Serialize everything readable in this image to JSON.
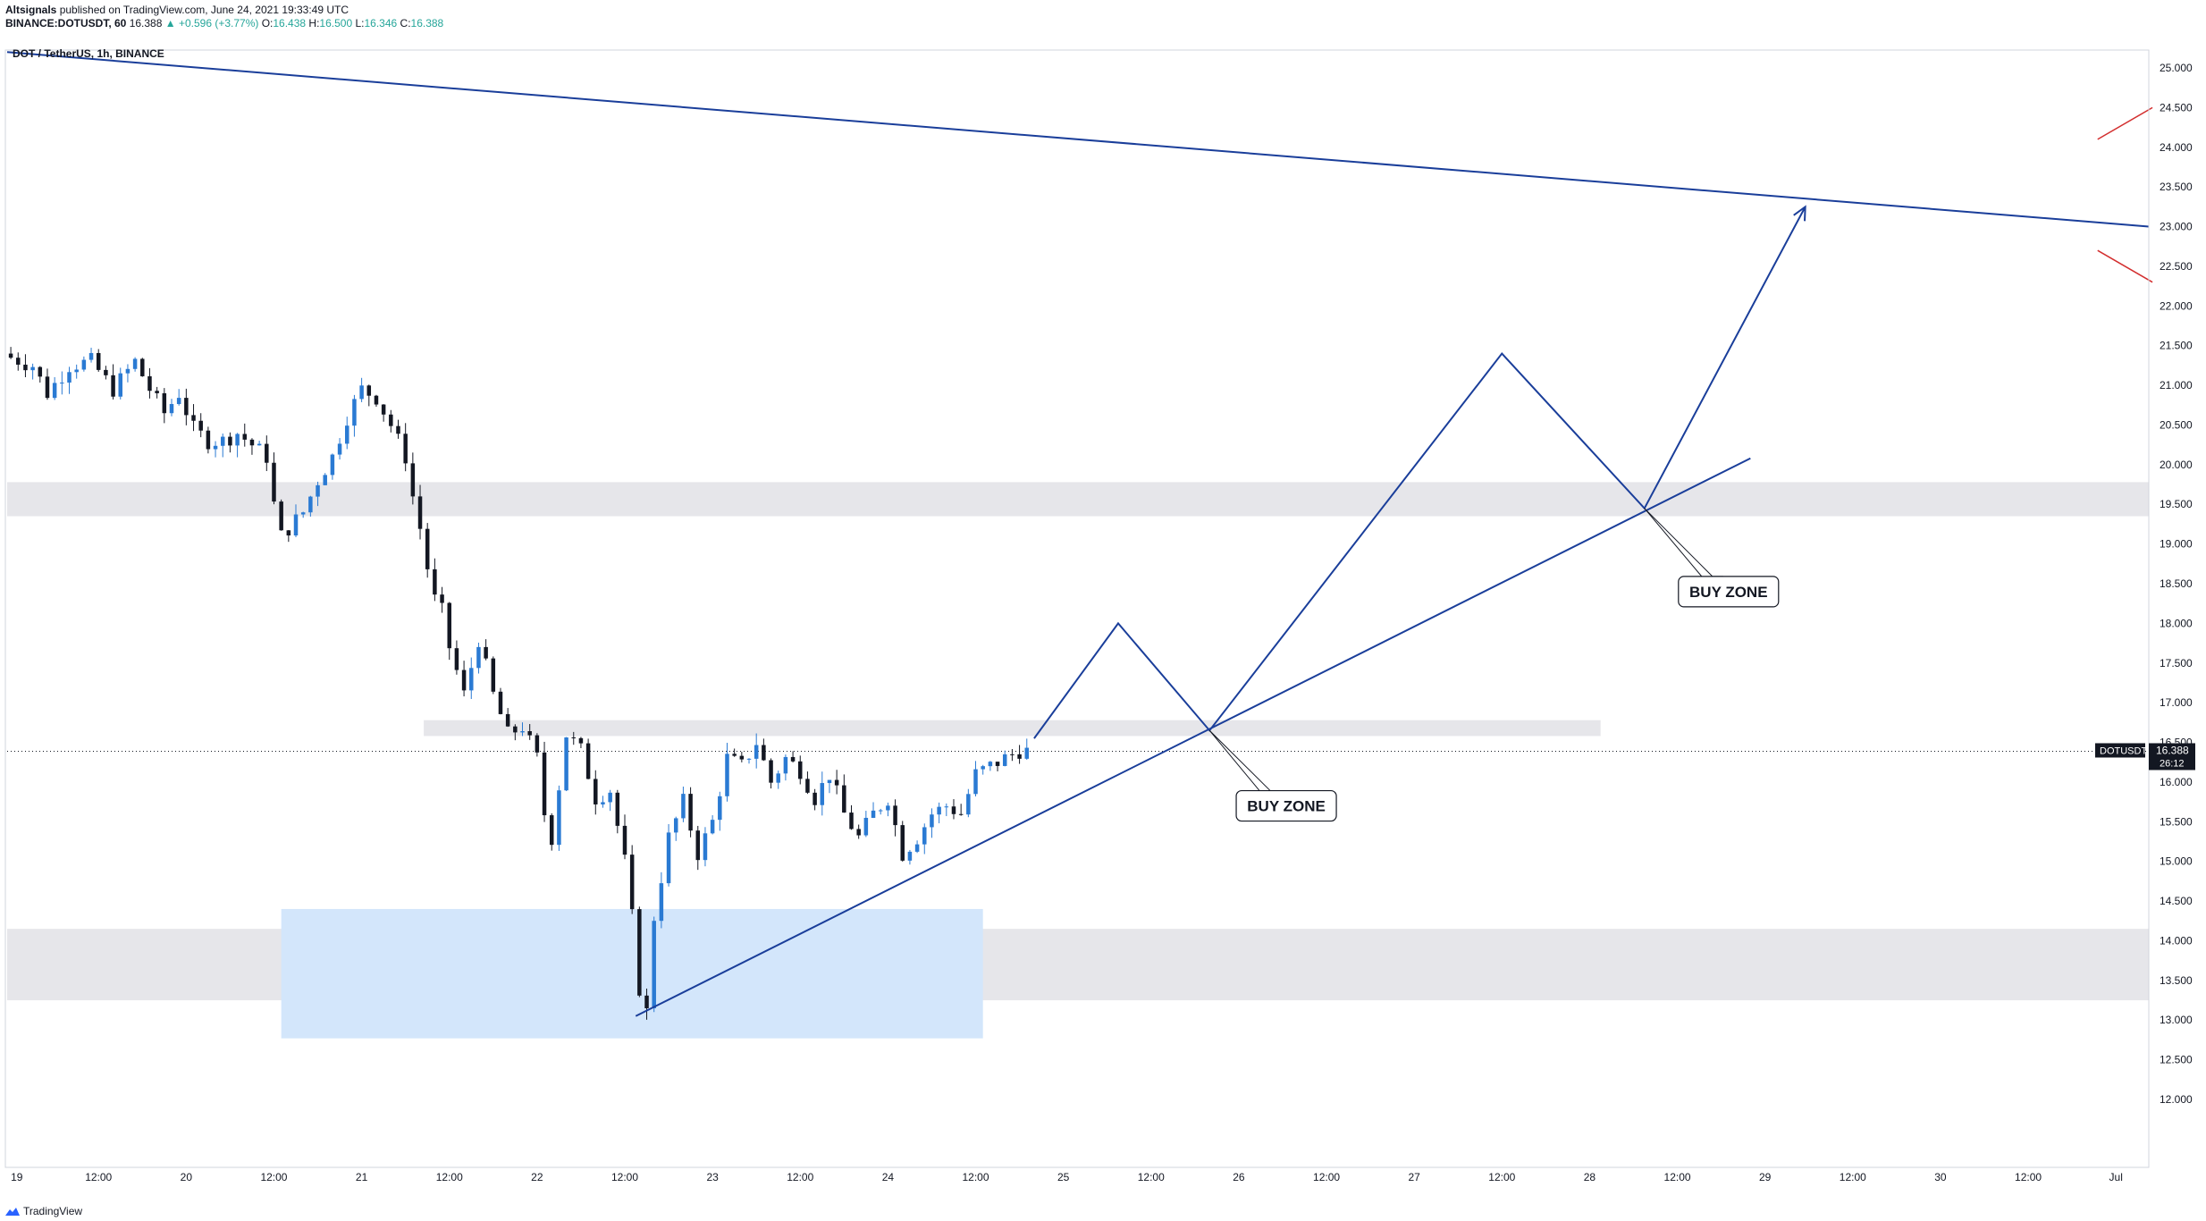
{
  "header": {
    "publisher": "Altsignals",
    "published_text": "published on TradingView.com, June 24, 2021 19:33:49 UTC",
    "symbol": "BINANCE:DOTUSDT, 60",
    "last": "16.388",
    "change": "▲ +0.596 (+3.77%)",
    "o_label": "O:",
    "o": "16.438",
    "h_label": "H:",
    "h": "16.500",
    "l_label": "L:",
    "l": "16.346",
    "c_label": "C:",
    "c": "16.388"
  },
  "footer": {
    "brand": "TradingView"
  },
  "colors": {
    "up": "#2a7ad3",
    "down": "#131722",
    "drawing": "#1a3e9a",
    "red_mark": "#d32f2f",
    "zone_gray": "#e6e6ea",
    "zone_blue": "#d3e6fb"
  },
  "chart_data": {
    "type": "candlestick",
    "title": "DOT / TetherUS, 1h, BINANCE",
    "ylim": [
      12.0,
      25.0
    ],
    "y_ticks": [
      "12.000",
      "12.500",
      "13.000",
      "13.500",
      "14.000",
      "14.500",
      "15.000",
      "15.500",
      "16.000",
      "16.500",
      "17.000",
      "17.500",
      "18.000",
      "18.500",
      "19.000",
      "19.500",
      "20.000",
      "20.500",
      "21.000",
      "21.500",
      "22.000",
      "22.500",
      "23.000",
      "23.500",
      "24.000",
      "24.500",
      "25.000"
    ],
    "x_ticks": [
      {
        "t": 0,
        "label": "19"
      },
      {
        "t": 12,
        "label": "12:00"
      },
      {
        "t": 24,
        "label": "20"
      },
      {
        "t": 36,
        "label": "12:00"
      },
      {
        "t": 48,
        "label": "21"
      },
      {
        "t": 60,
        "label": "12:00"
      },
      {
        "t": 72,
        "label": "22"
      },
      {
        "t": 84,
        "label": "12:00"
      },
      {
        "t": 96,
        "label": "23"
      },
      {
        "t": 108,
        "label": "12:00"
      },
      {
        "t": 120,
        "label": "24"
      },
      {
        "t": 132,
        "label": "12:00"
      },
      {
        "t": 144,
        "label": "25"
      },
      {
        "t": 156,
        "label": "12:00"
      },
      {
        "t": 168,
        "label": "26"
      },
      {
        "t": 180,
        "label": "12:00"
      },
      {
        "t": 192,
        "label": "27"
      },
      {
        "t": 204,
        "label": "12:00"
      },
      {
        "t": 216,
        "label": "28"
      },
      {
        "t": 228,
        "label": "12:00"
      },
      {
        "t": 240,
        "label": "29"
      },
      {
        "t": 252,
        "label": "12:00"
      },
      {
        "t": 264,
        "label": "30"
      },
      {
        "t": 276,
        "label": "12:00"
      },
      {
        "t": 288,
        "label": "Jul"
      }
    ],
    "x_range": [
      -0.5,
      292.5
    ],
    "last_price": {
      "value": 16.388,
      "symbol": "DOTUSDT",
      "price_label": "16.388",
      "countdown": "26:12"
    },
    "ohlc_anchors": [
      [
        0,
        21.35
      ],
      [
        3,
        21.25
      ],
      [
        5,
        20.9
      ],
      [
        8,
        21.25
      ],
      [
        11,
        21.3
      ],
      [
        14,
        20.95
      ],
      [
        17,
        21.3
      ],
      [
        19,
        20.95
      ],
      [
        21,
        20.65
      ],
      [
        23,
        20.9
      ],
      [
        25,
        20.45
      ],
      [
        27,
        20.3
      ],
      [
        29,
        20.3
      ],
      [
        31,
        20.4
      ],
      [
        33,
        20.25
      ],
      [
        35,
        20.1
      ],
      [
        36,
        19.5
      ],
      [
        37,
        19.1
      ],
      [
        40,
        19.4
      ],
      [
        42,
        19.8
      ],
      [
        44,
        20.1
      ],
      [
        46,
        20.6
      ],
      [
        48,
        20.95
      ],
      [
        50,
        20.85
      ],
      [
        52,
        20.5
      ],
      [
        54,
        20.1
      ],
      [
        55,
        19.6
      ],
      [
        56,
        19.2
      ],
      [
        57,
        18.7
      ],
      [
        58,
        18.3
      ],
      [
        59,
        18.15
      ],
      [
        60,
        17.7
      ],
      [
        62,
        17.1
      ],
      [
        64,
        17.8
      ],
      [
        66,
        17.1
      ],
      [
        68,
        16.6
      ],
      [
        70,
        16.7
      ],
      [
        72,
        16.3
      ],
      [
        73,
        15.6
      ],
      [
        74,
        15.3
      ],
      [
        76,
        16.6
      ],
      [
        78,
        16.4
      ],
      [
        80,
        15.8
      ],
      [
        82,
        15.9
      ],
      [
        84,
        15.0
      ],
      [
        85,
        14.3
      ],
      [
        86,
        13.4
      ],
      [
        87,
        13.1
      ],
      [
        88,
        14.3
      ],
      [
        90,
        15.3
      ],
      [
        92,
        15.75
      ],
      [
        94,
        15.1
      ],
      [
        96,
        15.5
      ],
      [
        98,
        16.3
      ],
      [
        100,
        16.2
      ],
      [
        102,
        16.5
      ],
      [
        104,
        16.0
      ],
      [
        106,
        16.3
      ],
      [
        108,
        16.15
      ],
      [
        110,
        15.8
      ],
      [
        112,
        16.1
      ],
      [
        114,
        15.6
      ],
      [
        116,
        15.3
      ],
      [
        118,
        15.6
      ],
      [
        120,
        15.8
      ],
      [
        122,
        15.1
      ],
      [
        124,
        15.3
      ],
      [
        126,
        15.6
      ],
      [
        128,
        15.7
      ],
      [
        130,
        15.6
      ],
      [
        132,
        16.1
      ],
      [
        134,
        16.2
      ],
      [
        136,
        16.3
      ],
      [
        138,
        16.4
      ],
      [
        139,
        16.388
      ]
    ],
    "zones": [
      {
        "t0": -0.5,
        "t1": 292.5,
        "y0": 19.35,
        "y1": 19.78,
        "color": "gray"
      },
      {
        "t0": 56.5,
        "t1": 217.5,
        "y0": 16.58,
        "y1": 16.78,
        "color": "gray"
      },
      {
        "t0": -0.5,
        "t1": 292.5,
        "y0": 13.25,
        "y1": 14.15,
        "color": "gray"
      },
      {
        "t0": 37,
        "t1": 133,
        "y0": 12.77,
        "y1": 14.4,
        "color": "blue"
      }
    ],
    "trendlines": [
      {
        "from": [
          -0.5,
          25.2
        ],
        "to": [
          292.5,
          23.0
        ]
      },
      {
        "from": [
          85.5,
          13.05
        ],
        "to": [
          238,
          20.08
        ]
      }
    ],
    "projection_path": [
      [
        140,
        16.55
      ],
      [
        151.5,
        18.0
      ],
      [
        164,
        16.65
      ],
      [
        204,
        21.4
      ],
      [
        223.5,
        19.45
      ],
      [
        245.5,
        23.25
      ]
    ],
    "red_marks": [
      {
        "from": [
          285.5,
          24.1
        ],
        "to": [
          293,
          24.5
        ]
      },
      {
        "from": [
          285.5,
          22.7
        ],
        "to": [
          293,
          22.3
        ]
      }
    ],
    "annotations": [
      {
        "text": "BUY ZONE",
        "point": [
          164,
          16.65
        ],
        "box_center": [
          174.5,
          15.7
        ]
      },
      {
        "text": "BUY ZONE",
        "point": [
          223.5,
          19.45
        ],
        "box_center": [
          235,
          18.4
        ]
      }
    ]
  }
}
